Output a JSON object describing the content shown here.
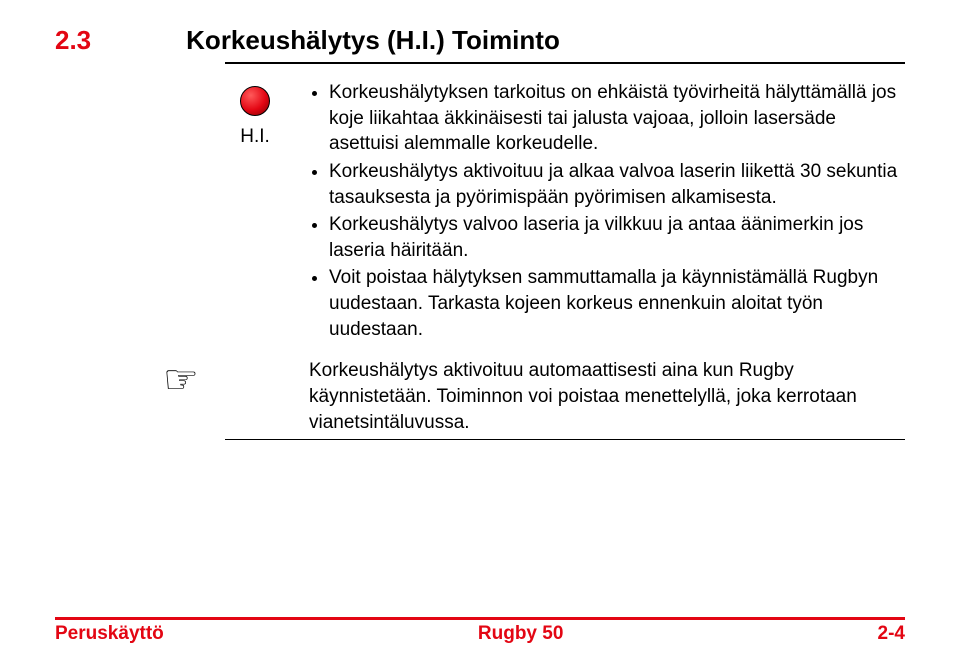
{
  "colors": {
    "accent": "#e30613",
    "text": "#000000",
    "background": "#ffffff"
  },
  "typography": {
    "body_fontsize_pt": 14,
    "heading_fontsize_pt": 20,
    "line_height": 1.35
  },
  "header": {
    "section_number": "2.3",
    "section_title": "Korkeushälytys (H.I.) Toiminto"
  },
  "icon": {
    "label": "H.I.",
    "shape": "circle",
    "fill": "radial-red",
    "border": "#000000"
  },
  "bullets": [
    "Korkeushälytyksen tarkoitus on ehkäistä työvirheitä hälyttämällä jos koje liikahtaa äkkinäisesti tai jalusta vajoaa, jolloin lasersäde asettuisi alemmalle korkeudelle.",
    "Korkeushälytys aktivoituu ja alkaa valvoa laserin liikettä 30 sekuntia tasauksesta ja pyörimispään pyörimisen alkamisesta.",
    "Korkeushälytys valvoo laseria ja vilkkuu ja antaa äänimerkin jos laseria häiritään.",
    "Voit poistaa hälytyksen sammuttamalla ja käynnistämällä Rugbyn uudestaan. Tarkasta kojeen korkeus ennenkuin aloitat työn uudestaan."
  ],
  "note": {
    "icon": "☞",
    "text": "Korkeushälytys aktivoituu automaattisesti aina kun Rugby käynnistetään. Toiminnon voi poistaa menettelyllä, joka kerrotaan vianetsintäluvussa."
  },
  "footer": {
    "left": "Peruskäyttö",
    "center": "Rugby 50",
    "right": "2-4"
  }
}
